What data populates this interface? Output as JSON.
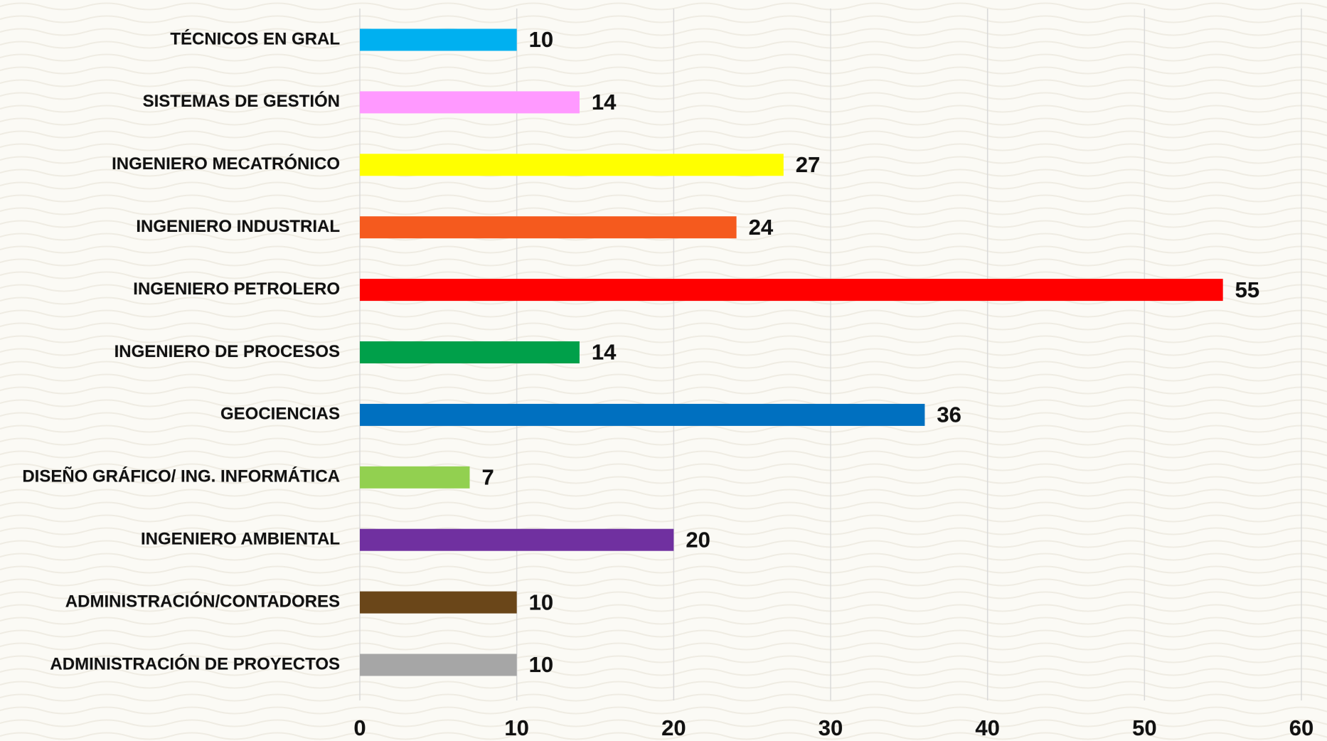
{
  "chart_data": {
    "type": "barh",
    "categories": [
      "TÉCNICOS EN GRAL",
      "SISTEMAS DE GESTIÓN",
      "INGENIERO MECATRÓNICO",
      "INGENIERO INDUSTRIAL",
      "INGENIERO PETROLERO",
      "INGENIERO DE PROCESOS",
      "GEOCIENCIAS",
      "DISEÑO GRÁFICO/ ING. INFORMÁTICA",
      "INGENIERO AMBIENTAL",
      "ADMINISTRACIÓN/CONTADORES",
      "ADMINISTRACIÓN DE PROYECTOS"
    ],
    "values": [
      10,
      14,
      27,
      24,
      55,
      14,
      36,
      7,
      20,
      10,
      10
    ],
    "colors": [
      "#00b0f0",
      "#ff99ff",
      "#ffff00",
      "#f55a1e",
      "#ff0000",
      "#00a04a",
      "#0070c0",
      "#92d050",
      "#7030a0",
      "#6a4619",
      "#a6a6a6"
    ],
    "xlim": [
      0,
      60
    ],
    "xticks": [
      0,
      10,
      20,
      30,
      40,
      50,
      60
    ],
    "grid": true
  }
}
